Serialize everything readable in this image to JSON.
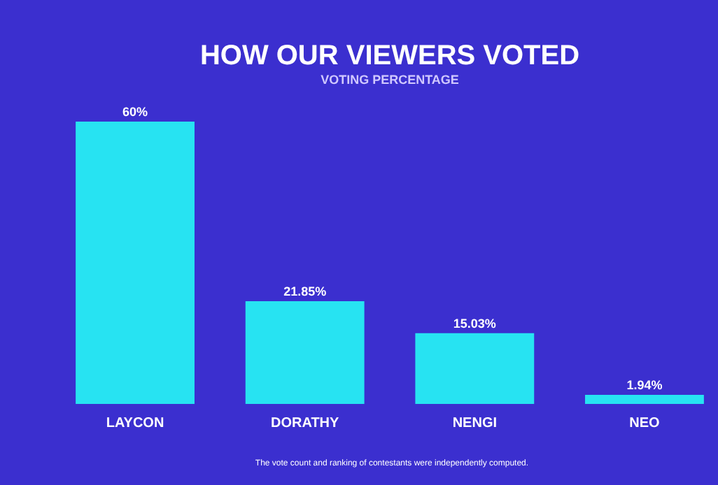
{
  "chart_data": {
    "type": "bar",
    "title": "HOW OUR VIEWERS VOTED",
    "subtitle": "VOTING PERCENTAGE",
    "categories": [
      "LAYCON",
      "DORATHY",
      "NENGI",
      "NEO"
    ],
    "values": [
      60,
      21.85,
      15.03,
      1.94
    ],
    "value_labels": [
      "60%",
      "21.85%",
      "15.03%",
      "1.94%"
    ],
    "color": "#27e3f2",
    "annotations": [
      "The vote count and ranking of contestants were independently computed."
    ]
  }
}
